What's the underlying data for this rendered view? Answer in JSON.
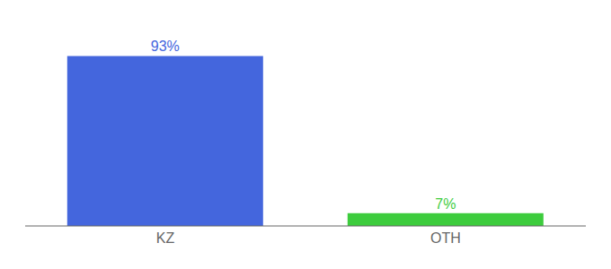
{
  "chart_data": {
    "type": "bar",
    "categories": [
      "KZ",
      "OTH"
    ],
    "values": [
      93,
      7
    ],
    "value_labels": [
      "93%",
      "7%"
    ],
    "colors": [
      "#4466dd",
      "#3dcc3d"
    ],
    "ylim": [
      0,
      105
    ],
    "data_labels": true,
    "tick_labels": "x"
  }
}
